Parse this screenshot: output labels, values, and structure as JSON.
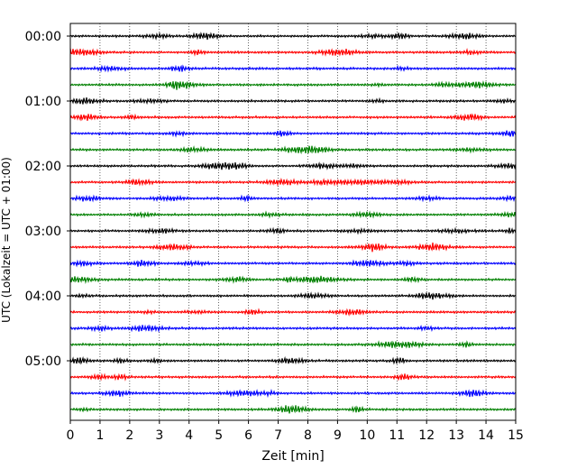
{
  "chart_data": {
    "type": "line",
    "title": "",
    "xlabel": "Zeit  [min]",
    "ylabel": "UTC (Lokalzeit = UTC + 01:00)",
    "xlim": [
      0,
      15
    ],
    "x_ticks": [
      "0",
      "1",
      "2",
      "3",
      "4",
      "5",
      "6",
      "7",
      "8",
      "9",
      "10",
      "11",
      "12",
      "13",
      "14",
      "15"
    ],
    "y_ticks": [
      "00:00",
      "01:00",
      "02:00",
      "03:00",
      "04:00",
      "05:00"
    ],
    "traces_per_hour": 4,
    "trace_minutes": 15,
    "trace_count": 24,
    "color_cycle": [
      "#000000",
      "#ff0000",
      "#0000ff",
      "#008000"
    ],
    "grid": {
      "vertical": true,
      "style": "dotted"
    },
    "series": [
      {
        "start": "00:00",
        "color": "#000000"
      },
      {
        "start": "00:15",
        "color": "#ff0000"
      },
      {
        "start": "00:30",
        "color": "#0000ff"
      },
      {
        "start": "00:45",
        "color": "#008000"
      },
      {
        "start": "01:00",
        "color": "#000000"
      },
      {
        "start": "01:15",
        "color": "#ff0000"
      },
      {
        "start": "01:30",
        "color": "#0000ff"
      },
      {
        "start": "01:45",
        "color": "#008000"
      },
      {
        "start": "02:00",
        "color": "#000000"
      },
      {
        "start": "02:15",
        "color": "#ff0000"
      },
      {
        "start": "02:30",
        "color": "#0000ff"
      },
      {
        "start": "02:45",
        "color": "#008000"
      },
      {
        "start": "03:00",
        "color": "#000000"
      },
      {
        "start": "03:15",
        "color": "#ff0000"
      },
      {
        "start": "03:30",
        "color": "#0000ff"
      },
      {
        "start": "03:45",
        "color": "#008000"
      },
      {
        "start": "04:00",
        "color": "#000000"
      },
      {
        "start": "04:15",
        "color": "#ff0000"
      },
      {
        "start": "04:30",
        "color": "#0000ff"
      },
      {
        "start": "04:45",
        "color": "#008000"
      },
      {
        "start": "05:00",
        "color": "#000000"
      },
      {
        "start": "05:15",
        "color": "#ff0000"
      },
      {
        "start": "05:30",
        "color": "#0000ff"
      },
      {
        "start": "05:45",
        "color": "#008000"
      }
    ]
  }
}
